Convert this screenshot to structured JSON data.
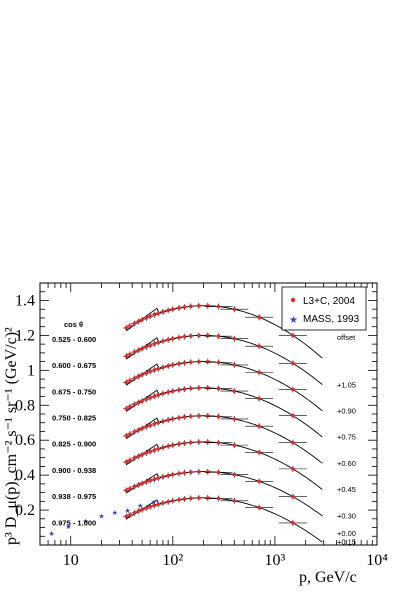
{
  "chart_data": {
    "type": "scatter",
    "xlabel": "p, GeV/c",
    "ylabel": "p³ D_μ(p), cm⁻² s⁻¹ sr⁻¹ (GeV/c)²",
    "xscale": "log",
    "xlim": [
      5,
      10000
    ],
    "ylim": [
      0,
      1.5
    ],
    "x_tick_labels": [
      "10",
      "10²",
      "10³",
      "10⁴"
    ],
    "x_tick_values": [
      10,
      100,
      1000,
      10000
    ],
    "y_tick_labels": [
      "0.2",
      "0.4",
      "0.6",
      "0.8",
      "1",
      "1.2",
      "1.4"
    ],
    "y_tick_values": [
      0.2,
      0.4,
      0.6,
      0.8,
      1.0,
      1.2,
      1.4
    ],
    "cos_header": "cos θ",
    "offset_header": "offset",
    "bins": [
      {
        "cos": "0.525 - 0.600",
        "offset": "",
        "base": 1.05,
        "peak": 1.37
      },
      {
        "cos": "0.600 - 0.675",
        "offset": "+1.05",
        "base": 0.9,
        "peak": 1.2
      },
      {
        "cos": "0.675 - 0.750",
        "offset": "+0.90",
        "base": 0.75,
        "peak": 1.05
      },
      {
        "cos": "0.750 - 0.825",
        "offset": "+0.75",
        "base": 0.6,
        "peak": 0.9
      },
      {
        "cos": "0.825 - 0.900",
        "offset": "+0.60",
        "base": 0.45,
        "peak": 0.74
      },
      {
        "cos": "0.900 - 0.938",
        "offset": "+0.45",
        "base": 0.3,
        "peak": 0.59
      },
      {
        "cos": "0.938 - 0.975",
        "offset": "+0.30",
        "base": 0.15,
        "peak": 0.42
      },
      {
        "cos": "0.975 - 1.000",
        "offset": "+0.15",
        "base": 0.0,
        "peak": 0.27
      }
    ],
    "bottom_offset": "+0.00",
    "l3c_x": [
      35,
      38,
      42,
      46,
      50,
      55,
      60,
      66,
      72,
      80,
      90,
      100,
      115,
      130,
      150,
      180,
      220,
      280,
      400,
      700,
      1500
    ],
    "mass_x": [
      6.5,
      9.5,
      14,
      20,
      27,
      36,
      48,
      65
    ],
    "mass_y": [
      0.07,
      0.11,
      0.14,
      0.17,
      0.19,
      0.2,
      0.23,
      0.25
    ],
    "series": [
      {
        "name": "L3+C, 2004",
        "color": "#e8282b",
        "marker": "dot"
      },
      {
        "name": "MASS, 1993",
        "color": "#3c3cc8",
        "marker": "star"
      }
    ],
    "legend_placement": "top-right",
    "grid": false
  }
}
